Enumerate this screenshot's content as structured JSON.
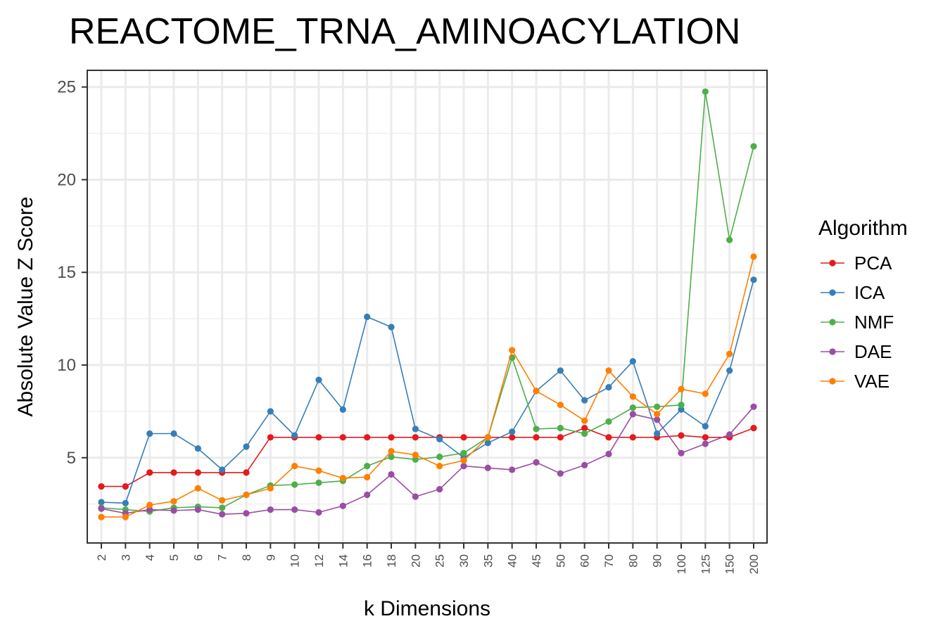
{
  "chart_data": {
    "type": "line",
    "title": "REACTOME_TRNA_AMINOACYLATION",
    "xlabel": "k Dimensions",
    "ylabel": "Absolute Value Z Score",
    "categories": [
      "2",
      "3",
      "4",
      "5",
      "6",
      "7",
      "8",
      "9",
      "10",
      "12",
      "14",
      "16",
      "18",
      "20",
      "25",
      "30",
      "35",
      "40",
      "45",
      "50",
      "60",
      "70",
      "80",
      "90",
      "100",
      "125",
      "150",
      "200"
    ],
    "ylim": [
      0.4,
      25.9
    ],
    "yticks": [
      5,
      10,
      15,
      20,
      25
    ],
    "grid": true,
    "legend": {
      "title": "Algorithm",
      "position": "right"
    },
    "series": [
      {
        "name": "PCA",
        "color": "#e41a1c",
        "values": [
          3.45,
          3.45,
          4.2,
          4.2,
          4.2,
          4.2,
          4.2,
          6.1,
          6.1,
          6.1,
          6.1,
          6.1,
          6.1,
          6.1,
          6.1,
          6.1,
          6.1,
          6.1,
          6.1,
          6.1,
          6.6,
          6.1,
          6.1,
          6.1,
          6.2,
          6.1,
          6.1,
          6.6
        ]
      },
      {
        "name": "ICA",
        "color": "#377eb8",
        "values": [
          2.6,
          2.55,
          6.3,
          6.3,
          5.5,
          4.35,
          5.6,
          7.5,
          6.2,
          9.2,
          7.6,
          12.6,
          12.05,
          6.55,
          6.0,
          5.0,
          5.8,
          6.4,
          8.6,
          9.7,
          8.1,
          8.8,
          10.2,
          6.3,
          7.6,
          6.7,
          9.7,
          14.6
        ]
      },
      {
        "name": "NMF",
        "color": "#4daf4a",
        "values": [
          2.3,
          2.2,
          2.1,
          2.3,
          2.35,
          2.3,
          3.0,
          3.5,
          3.55,
          3.65,
          3.75,
          4.55,
          5.05,
          4.9,
          5.05,
          5.25,
          6.1,
          10.4,
          6.55,
          6.6,
          6.3,
          6.95,
          7.7,
          7.75,
          7.85,
          24.75,
          16.75,
          21.8
        ]
      },
      {
        "name": "DAE",
        "color": "#984ea3",
        "values": [
          2.25,
          2.0,
          2.2,
          2.15,
          2.2,
          1.95,
          2.0,
          2.2,
          2.2,
          2.05,
          2.4,
          3.0,
          4.1,
          2.9,
          3.3,
          4.55,
          4.45,
          4.35,
          4.75,
          4.15,
          4.6,
          5.2,
          7.35,
          7.05,
          5.25,
          5.75,
          6.25,
          7.75
        ]
      },
      {
        "name": "VAE",
        "color": "#ff7f00",
        "values": [
          1.8,
          1.8,
          2.45,
          2.65,
          3.35,
          2.7,
          3.0,
          3.35,
          4.55,
          4.3,
          3.9,
          3.95,
          5.35,
          5.15,
          4.55,
          4.85,
          6.1,
          10.8,
          8.6,
          7.85,
          7.0,
          9.7,
          8.3,
          7.35,
          8.7,
          8.45,
          10.6,
          15.85
        ]
      }
    ]
  }
}
